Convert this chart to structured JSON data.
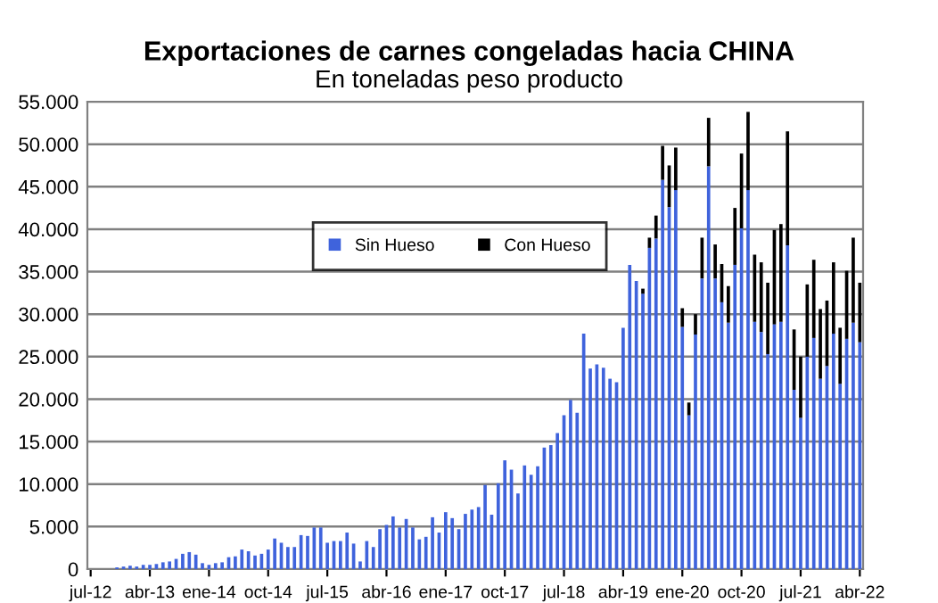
{
  "chart_data": {
    "type": "bar",
    "title": "Exportaciones de carnes congeladas hacia CHINA",
    "subtitle": "En toneladas peso producto",
    "categories": [
      "jul-12",
      null,
      null,
      null,
      null,
      null,
      null,
      null,
      null,
      "abr-13",
      null,
      null,
      null,
      null,
      null,
      null,
      null,
      null,
      "ene-14",
      null,
      null,
      null,
      null,
      null,
      null,
      null,
      null,
      "oct-14",
      null,
      null,
      null,
      null,
      null,
      null,
      null,
      null,
      "jul-15",
      null,
      null,
      null,
      null,
      null,
      null,
      null,
      null,
      "abr-16",
      null,
      null,
      null,
      null,
      null,
      null,
      null,
      null,
      "ene-17",
      null,
      null,
      null,
      null,
      null,
      null,
      null,
      null,
      "oct-17",
      null,
      null,
      null,
      null,
      null,
      null,
      null,
      null,
      "jul-18",
      null,
      null,
      null,
      null,
      null,
      null,
      null,
      null,
      "abr-19",
      null,
      null,
      null,
      null,
      null,
      null,
      null,
      null,
      "ene-20",
      null,
      null,
      null,
      null,
      null,
      null,
      null,
      null,
      "oct-20",
      null,
      null,
      null,
      null,
      null,
      null,
      null,
      null,
      "jul-21",
      null,
      null,
      null,
      null,
      null,
      null,
      null,
      null,
      "abr-22"
    ],
    "stacked": true,
    "series": [
      {
        "name": "Sin Hueso",
        "color": "#3f63dc",
        "values": [
          0,
          0,
          0,
          0,
          200,
          300,
          400,
          300,
          500,
          500,
          600,
          800,
          900,
          1200,
          1800,
          2000,
          1700,
          700,
          500,
          700,
          800,
          1400,
          1500,
          2300,
          2100,
          1600,
          1800,
          2300,
          3600,
          3100,
          2600,
          2600,
          4000,
          3900,
          4900,
          4900,
          3100,
          3300,
          3300,
          4300,
          3000,
          900,
          3300,
          2600,
          4700,
          5200,
          6200,
          4900,
          5900,
          4900,
          3500,
          3800,
          6100,
          4300,
          6700,
          6000,
          4700,
          6500,
          7000,
          7300,
          9900,
          6400,
          10100,
          12800,
          11700,
          8900,
          12200,
          11100,
          12100,
          14300,
          14600,
          16000,
          18100,
          19900,
          18400,
          27700,
          23600,
          24100,
          23700,
          22400,
          22000,
          28400,
          35800,
          33900,
          32400,
          37800,
          38900,
          45800,
          42600,
          44600,
          28500,
          18100,
          27600,
          34200,
          47400,
          34200,
          31400,
          29000,
          35800,
          40100,
          44600,
          29100,
          27900,
          25300,
          28800,
          29100,
          38100,
          21100,
          17800,
          25000,
          27200,
          22400,
          23900,
          27700,
          21800,
          27100,
          29000,
          26700
        ]
      },
      {
        "name": "Con Hueso",
        "color": "#000000",
        "values": [
          0,
          0,
          0,
          0,
          0,
          0,
          0,
          0,
          0,
          0,
          0,
          0,
          0,
          0,
          0,
          0,
          0,
          0,
          0,
          0,
          0,
          0,
          0,
          0,
          0,
          0,
          0,
          0,
          0,
          0,
          0,
          0,
          0,
          0,
          0,
          0,
          0,
          0,
          0,
          0,
          0,
          0,
          0,
          0,
          0,
          0,
          0,
          0,
          0,
          0,
          0,
          0,
          0,
          0,
          0,
          0,
          0,
          0,
          0,
          0,
          0,
          0,
          0,
          0,
          0,
          0,
          0,
          0,
          0,
          0,
          0,
          0,
          0,
          0,
          0,
          0,
          0,
          0,
          0,
          0,
          0,
          0,
          0,
          0,
          600,
          1200,
          2700,
          4000,
          4900,
          5000,
          2200,
          1500,
          2400,
          4800,
          5700,
          4000,
          4500,
          4300,
          6700,
          8800,
          9200,
          7900,
          8200,
          8400,
          11100,
          11500,
          13400,
          7100,
          7200,
          8500,
          9200,
          8200,
          7700,
          8400,
          6600,
          8000,
          10000,
          7000
        ]
      }
    ],
    "ylim": [
      0,
      55000
    ],
    "yticks": [
      0,
      {
        "value": 5000,
        "label": "5.000"
      },
      {
        "value": 10000,
        "label": "10.000"
      },
      {
        "value": 15000,
        "label": "15.000"
      },
      {
        "value": 20000,
        "label": "20.000"
      },
      {
        "value": 25000,
        "label": "25.000"
      },
      {
        "value": 30000,
        "label": "30.000"
      },
      {
        "value": 35000,
        "label": "35.000"
      },
      {
        "value": 40000,
        "label": "40.000"
      },
      {
        "value": 45000,
        "label": "45.000"
      },
      {
        "value": 50000,
        "label": "50.000"
      },
      {
        "value": 55000,
        "label": "55.000"
      }
    ],
    "grid": "y",
    "legend": "top"
  }
}
